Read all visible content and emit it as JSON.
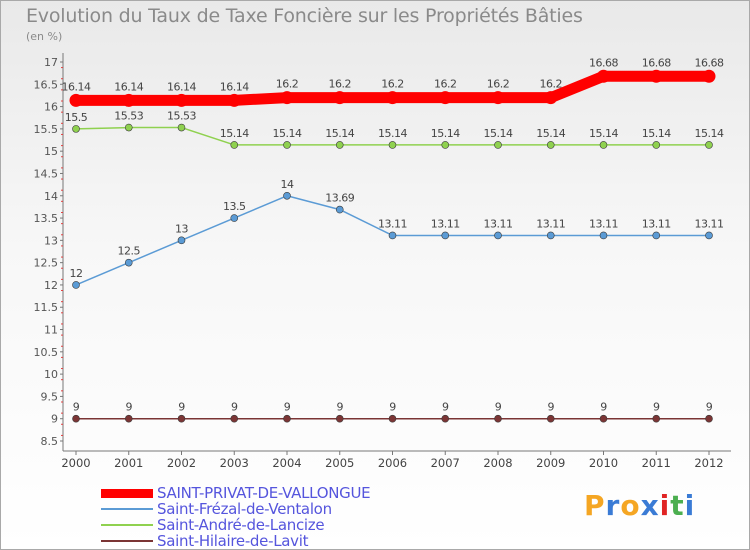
{
  "title": "Evolution du Taux de Taxe Foncière sur les Propriétés Bâties",
  "subtitle": "(en %)",
  "chart_data": {
    "type": "line",
    "title": "Evolution du Taux de Taxe Foncière sur les Propriétés Bâties",
    "ylabel": "(en %)",
    "xlabel": "",
    "categories": [
      "2000",
      "2001",
      "2002",
      "2003",
      "2004",
      "2005",
      "2006",
      "2007",
      "2008",
      "2009",
      "2010",
      "2011",
      "2012"
    ],
    "ylim": [
      8.5,
      17
    ],
    "yticks": [
      "8.5",
      "9",
      "9.5",
      "10",
      "10.5",
      "11",
      "11.5",
      "12",
      "12.5",
      "13",
      "13.5",
      "14",
      "14.5",
      "15",
      "15.5",
      "16",
      "16.5",
      "17"
    ],
    "grid": false,
    "series": [
      {
        "name": "SAINT-PRIVAT-DE-VALLONGUE",
        "color": "#ff0000",
        "emphasis": true,
        "values": [
          16.14,
          16.14,
          16.14,
          16.14,
          16.2,
          16.2,
          16.2,
          16.2,
          16.2,
          16.2,
          16.68,
          16.68,
          16.68
        ],
        "labels": [
          "16.14",
          "16.14",
          "16.14",
          "16.14",
          "16.2",
          "16.2",
          "16.2",
          "16.2",
          "16.2",
          "16.2",
          "16.68",
          "16.68",
          "16.68"
        ]
      },
      {
        "name": "Saint-Frézal-de-Ventalon",
        "color": "#5b9bd5",
        "emphasis": false,
        "values": [
          12,
          12.5,
          13,
          13.5,
          14,
          13.69,
          13.11,
          13.11,
          13.11,
          13.11,
          13.11,
          13.11,
          13.11
        ],
        "labels": [
          "12",
          "12.5",
          "13",
          "13.5",
          "14",
          "13.69",
          "13.11",
          "13.11",
          "13.11",
          "13.11",
          "13.11",
          "13.11",
          "13.11"
        ]
      },
      {
        "name": "Saint-André-de-Lancize",
        "color": "#8fd14f",
        "emphasis": false,
        "values": [
          15.5,
          15.53,
          15.53,
          15.14,
          15.14,
          15.14,
          15.14,
          15.14,
          15.14,
          15.14,
          15.14,
          15.14,
          15.14
        ],
        "labels": [
          "15.5",
          "15.53",
          "15.53",
          "15.14",
          "15.14",
          "15.14",
          "15.14",
          "15.14",
          "15.14",
          "15.14",
          "15.14",
          "15.14",
          "15.14"
        ]
      },
      {
        "name": "Saint-Hilaire-de-Lavit",
        "color": "#7b3535",
        "emphasis": false,
        "values": [
          9,
          9,
          9,
          9,
          9,
          9,
          9,
          9,
          9,
          9,
          9,
          9,
          9
        ],
        "labels": [
          "9",
          "9",
          "9",
          "9",
          "9",
          "9",
          "9",
          "9",
          "9",
          "9",
          "9",
          "9",
          "9"
        ]
      }
    ]
  },
  "legend": {
    "items": [
      {
        "label": "SAINT-PRIVAT-DE-VALLONGUE"
      },
      {
        "label": "Saint-Frézal-de-Ventalon"
      },
      {
        "label": "Saint-André-de-Lancize"
      },
      {
        "label": "Saint-Hilaire-de-Lavit"
      }
    ]
  },
  "logo": {
    "text": "Proxiti",
    "colors": [
      "#f5a623",
      "#3a7bd5",
      "#f5a623",
      "#3a7bd5",
      "#e02424",
      "#4caf50",
      "#3a7bd5"
    ]
  }
}
